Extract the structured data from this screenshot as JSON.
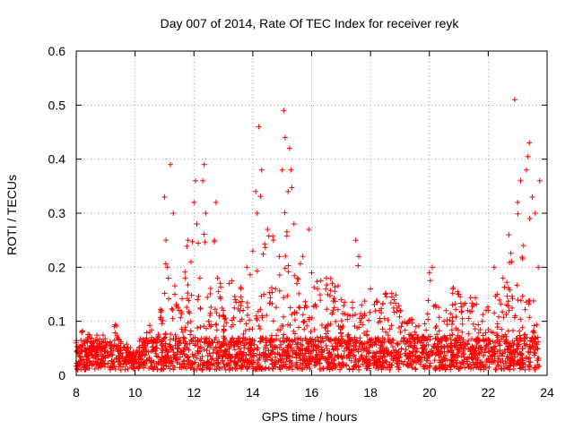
{
  "chart_data": {
    "type": "scatter",
    "title": "Day 007 of 2014, Rate Of TEC Index for receiver reyk",
    "xlabel": "GPS time / hours",
    "ylabel": "ROTI / TECUs",
    "xlim": [
      8,
      24
    ],
    "ylim": [
      0,
      0.6
    ],
    "xticks": [
      8,
      10,
      12,
      14,
      16,
      18,
      20,
      22,
      24
    ],
    "xtick_labels": [
      "8",
      "10",
      "12",
      "14",
      "16",
      "18",
      "20",
      "22",
      "24"
    ],
    "yticks": [
      0,
      0.1,
      0.2,
      0.3,
      0.4,
      0.5,
      0.6
    ],
    "ytick_labels": [
      "0",
      "0.1",
      "0.2",
      "0.3",
      "0.4",
      "0.5",
      "0.6"
    ],
    "grid": true,
    "marker": "+",
    "color": "#ff0000",
    "series": [
      {
        "name": "reyk",
        "x": [
          8.0,
          8.1,
          8.2,
          8.3,
          8.4,
          8.5,
          8.6,
          8.8,
          9.0,
          9.2,
          9.3,
          9.5,
          9.8,
          10.0,
          10.3,
          10.5,
          10.7,
          10.9,
          11.0,
          11.05,
          11.1,
          11.2,
          11.3,
          11.35,
          11.5,
          11.7,
          11.8,
          11.9,
          12.0,
          12.05,
          12.1,
          12.2,
          12.3,
          12.35,
          12.4,
          12.5,
          12.7,
          12.75,
          12.8,
          13.0,
          13.2,
          13.4,
          13.6,
          13.8,
          14.0,
          14.1,
          14.15,
          14.2,
          14.3,
          14.5,
          14.7,
          14.9,
          15.0,
          15.05,
          15.1,
          15.2,
          15.25,
          15.3,
          15.4,
          15.5,
          15.7,
          15.9,
          16.0,
          16.2,
          16.5,
          16.7,
          17.0,
          17.3,
          17.5,
          17.6,
          17.7,
          18.0,
          18.3,
          18.5,
          18.8,
          19.0,
          19.3,
          19.5,
          19.8,
          20.0,
          20.1,
          20.2,
          20.5,
          20.8,
          21.0,
          21.3,
          21.5,
          21.8,
          22.0,
          22.2,
          22.3,
          22.5,
          22.7,
          22.8,
          22.9,
          23.0,
          23.1,
          23.2,
          23.3,
          23.4,
          23.5,
          23.6,
          23.7,
          23.75
        ],
        "y": [
          0.06,
          0.04,
          0.08,
          0.05,
          0.07,
          0.05,
          0.06,
          0.05,
          0.06,
          0.05,
          0.09,
          0.05,
          0.04,
          0.03,
          0.06,
          0.08,
          0.05,
          0.12,
          0.33,
          0.25,
          0.2,
          0.39,
          0.3,
          0.15,
          0.12,
          0.18,
          0.25,
          0.21,
          0.32,
          0.36,
          0.28,
          0.18,
          0.36,
          0.39,
          0.3,
          0.1,
          0.25,
          0.32,
          0.18,
          0.12,
          0.17,
          0.14,
          0.16,
          0.2,
          0.23,
          0.34,
          0.3,
          0.46,
          0.38,
          0.27,
          0.25,
          0.22,
          0.38,
          0.49,
          0.44,
          0.34,
          0.42,
          0.38,
          0.28,
          0.17,
          0.22,
          0.27,
          0.19,
          0.16,
          0.18,
          0.17,
          0.14,
          0.11,
          0.25,
          0.22,
          0.13,
          0.16,
          0.12,
          0.15,
          0.14,
          0.12,
          0.1,
          0.08,
          0.07,
          0.19,
          0.2,
          0.13,
          0.1,
          0.16,
          0.15,
          0.12,
          0.13,
          0.1,
          0.12,
          0.2,
          0.15,
          0.18,
          0.26,
          0.21,
          0.51,
          0.32,
          0.36,
          0.24,
          0.38,
          0.43,
          0.33,
          0.3,
          0.2,
          0.36
        ]
      }
    ]
  }
}
